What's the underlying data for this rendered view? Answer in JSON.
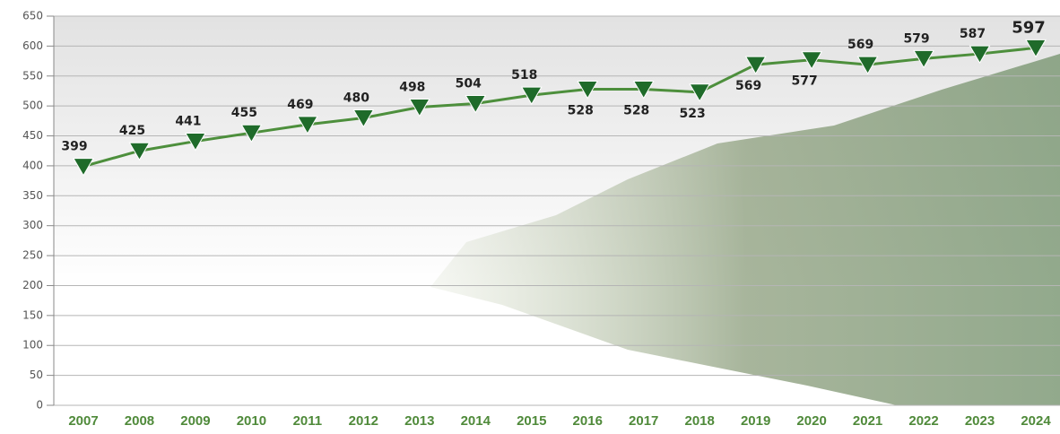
{
  "chart_data": {
    "type": "line",
    "categories": [
      "2007",
      "2008",
      "2009",
      "2010",
      "2011",
      "2012",
      "2013",
      "2014",
      "2015",
      "2016",
      "2017",
      "2018",
      "2019",
      "2020",
      "2021",
      "2022",
      "2023",
      "2024"
    ],
    "series": [
      {
        "color": "#4d8f3c",
        "marker_color": "#1f6b2a",
        "values": [
          399,
          425,
          441,
          455,
          469,
          480,
          498,
          504,
          518,
          528,
          528,
          523,
          569,
          577,
          569,
          579,
          587,
          597
        ]
      }
    ],
    "ylim": [
      0,
      650
    ],
    "yticks": [
      0,
      50,
      100,
      150,
      200,
      250,
      300,
      350,
      400,
      450,
      500,
      550,
      600,
      650
    ],
    "grid": true
  }
}
